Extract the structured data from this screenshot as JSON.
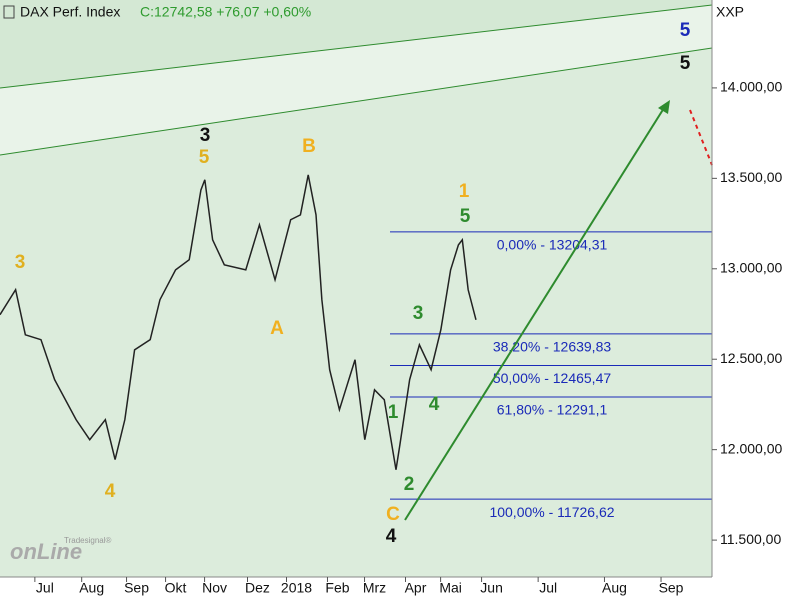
{
  "chart_data": {
    "type": "line",
    "title": "DAX Perf. Index",
    "subtitle": "C:12742,58 +76,07 +0,60%",
    "currency": "XXP",
    "watermark": [
      "Tradesignal®",
      "onLine"
    ],
    "x": [
      0,
      8,
      13,
      21,
      28,
      39,
      46,
      54,
      59,
      64,
      69,
      77,
      82,
      90,
      97,
      103,
      105,
      109,
      115,
      126,
      133,
      141,
      149,
      154,
      158,
      162,
      165,
      169,
      174,
      182,
      187,
      192,
      197,
      203,
      205,
      210,
      215,
      221,
      226,
      231,
      235,
      237,
      240,
      244
    ],
    "series": [
      {
        "name": "DAX Perf. Index",
        "color": "#222222",
        "values": [
          12746,
          12884,
          12635,
          12608,
          12387,
          12166,
          12055,
          12166,
          11945,
          12166,
          12552,
          12608,
          12829,
          12994,
          13050,
          13436,
          13492,
          13160,
          13022,
          12994,
          13243,
          12939,
          13271,
          13298,
          13519,
          13298,
          12829,
          12442,
          12221,
          12497,
          12055,
          12331,
          12276,
          11889,
          12027,
          12387,
          12580,
          12442,
          12663,
          12994,
          13132,
          13160,
          12884,
          12718
        ]
      }
    ],
    "xlim": [
      0,
      365
    ],
    "xticks": [
      {
        "value": 23,
        "label": "Jul"
      },
      {
        "value": 47,
        "label": "Aug"
      },
      {
        "value": 70,
        "label": "Sep"
      },
      {
        "value": 90,
        "label": "Okt"
      },
      {
        "value": 110,
        "label": "Nov"
      },
      {
        "value": 132,
        "label": "Dez"
      },
      {
        "value": 152,
        "label": "2018"
      },
      {
        "value": 173,
        "label": "Feb"
      },
      {
        "value": 192,
        "label": "Mrz"
      },
      {
        "value": 213,
        "label": "Apr"
      },
      {
        "value": 231,
        "label": "Mai"
      },
      {
        "value": 252,
        "label": "Jun"
      },
      {
        "value": 281,
        "label": "Jul"
      },
      {
        "value": 315,
        "label": "Aug"
      },
      {
        "value": 344,
        "label": "Sep"
      }
    ],
    "ylim": [
      11296,
      14486
    ],
    "yticks": [
      {
        "value": 11500,
        "label": "11.500,00"
      },
      {
        "value": 12000,
        "label": "12.000,00"
      },
      {
        "value": 12500,
        "label": "12.500,00"
      },
      {
        "value": 13000,
        "label": "13.000,00"
      },
      {
        "value": 13500,
        "label": "13.500,00"
      },
      {
        "value": 14000,
        "label": "14.000,00"
      }
    ],
    "fib_levels": [
      {
        "value": 13204.31,
        "label": "0,00% - 13204,31"
      },
      {
        "value": 12639.83,
        "label": "38,20% - 12639,83"
      },
      {
        "value": 12465.47,
        "label": "50,00% - 12465,47"
      },
      {
        "value": 12291.1,
        "label": "61,80% - 12291,1"
      },
      {
        "value": 11726.62,
        "label": "100,00% - 11726,62"
      }
    ],
    "annotations": [
      "3",
      "5",
      "3",
      "B",
      "A",
      "4",
      "1",
      "5",
      "3",
      "4",
      "1",
      "2",
      "C",
      "4",
      "5",
      "5"
    ]
  }
}
